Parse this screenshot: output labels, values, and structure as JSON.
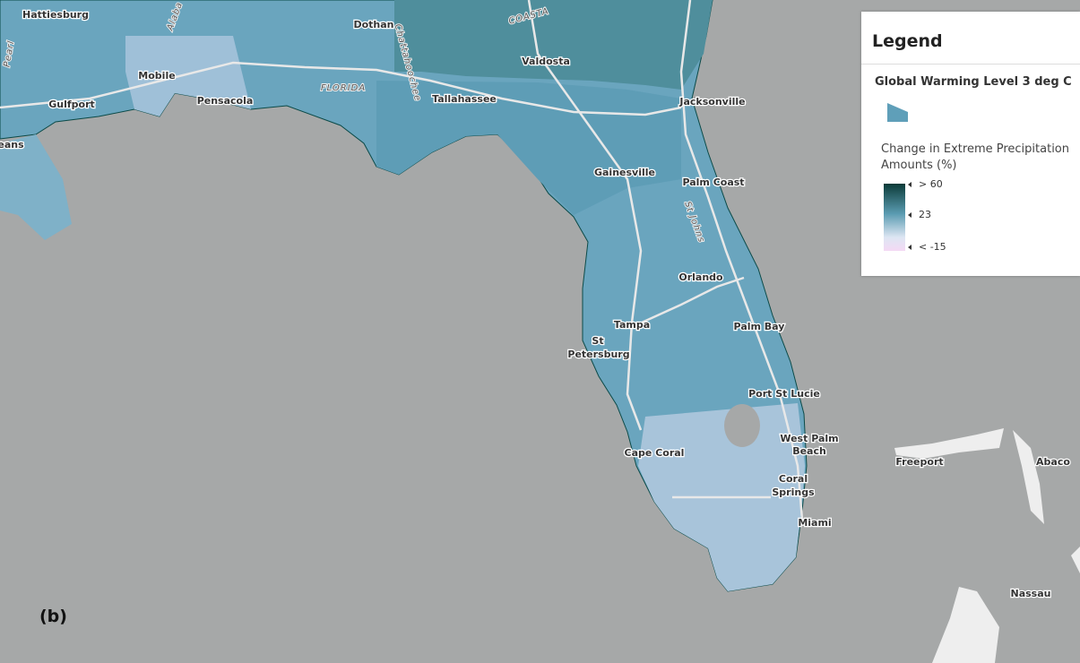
{
  "map": {
    "labels": [
      {
        "text": "Hattiesburg"
      },
      {
        "text": "Dothan"
      },
      {
        "text": "Valdosta"
      },
      {
        "text": "Mobile"
      },
      {
        "text": "Gulfport"
      },
      {
        "text": "Pensacola"
      },
      {
        "text": "Tallahassee"
      },
      {
        "text": "Jacksonville"
      },
      {
        "text": "Gainesville"
      },
      {
        "text": "Palm Coast"
      },
      {
        "text": "Orlando"
      },
      {
        "text": "Tampa"
      },
      {
        "text": "Palm Bay"
      },
      {
        "text": "St"
      },
      {
        "text": "Petersburg"
      },
      {
        "text": "Port St Lucie"
      },
      {
        "text": "West Palm"
      },
      {
        "text": "Beach"
      },
      {
        "text": "Cape Coral"
      },
      {
        "text": "Coral"
      },
      {
        "text": "Springs"
      },
      {
        "text": "Miami"
      },
      {
        "text": "Freeport"
      },
      {
        "text": "Abaco"
      },
      {
        "text": "Nassau"
      },
      {
        "text": "eans"
      }
    ],
    "features": [
      {
        "text": "FLORIDA"
      },
      {
        "text": "Chattahoochee"
      },
      {
        "text": "St Johns"
      },
      {
        "text": "Pearl"
      },
      {
        "text": "Alaba"
      },
      {
        "text": "COASTA"
      }
    ]
  },
  "legend": {
    "title": "Legend",
    "layer": "Global Warming Level 3 deg C",
    "field": "Change in Extreme Precipitation Amounts (%)",
    "stops": [
      "> 60",
      "23",
      "< -15"
    ]
  },
  "panel_label": "(b)"
}
